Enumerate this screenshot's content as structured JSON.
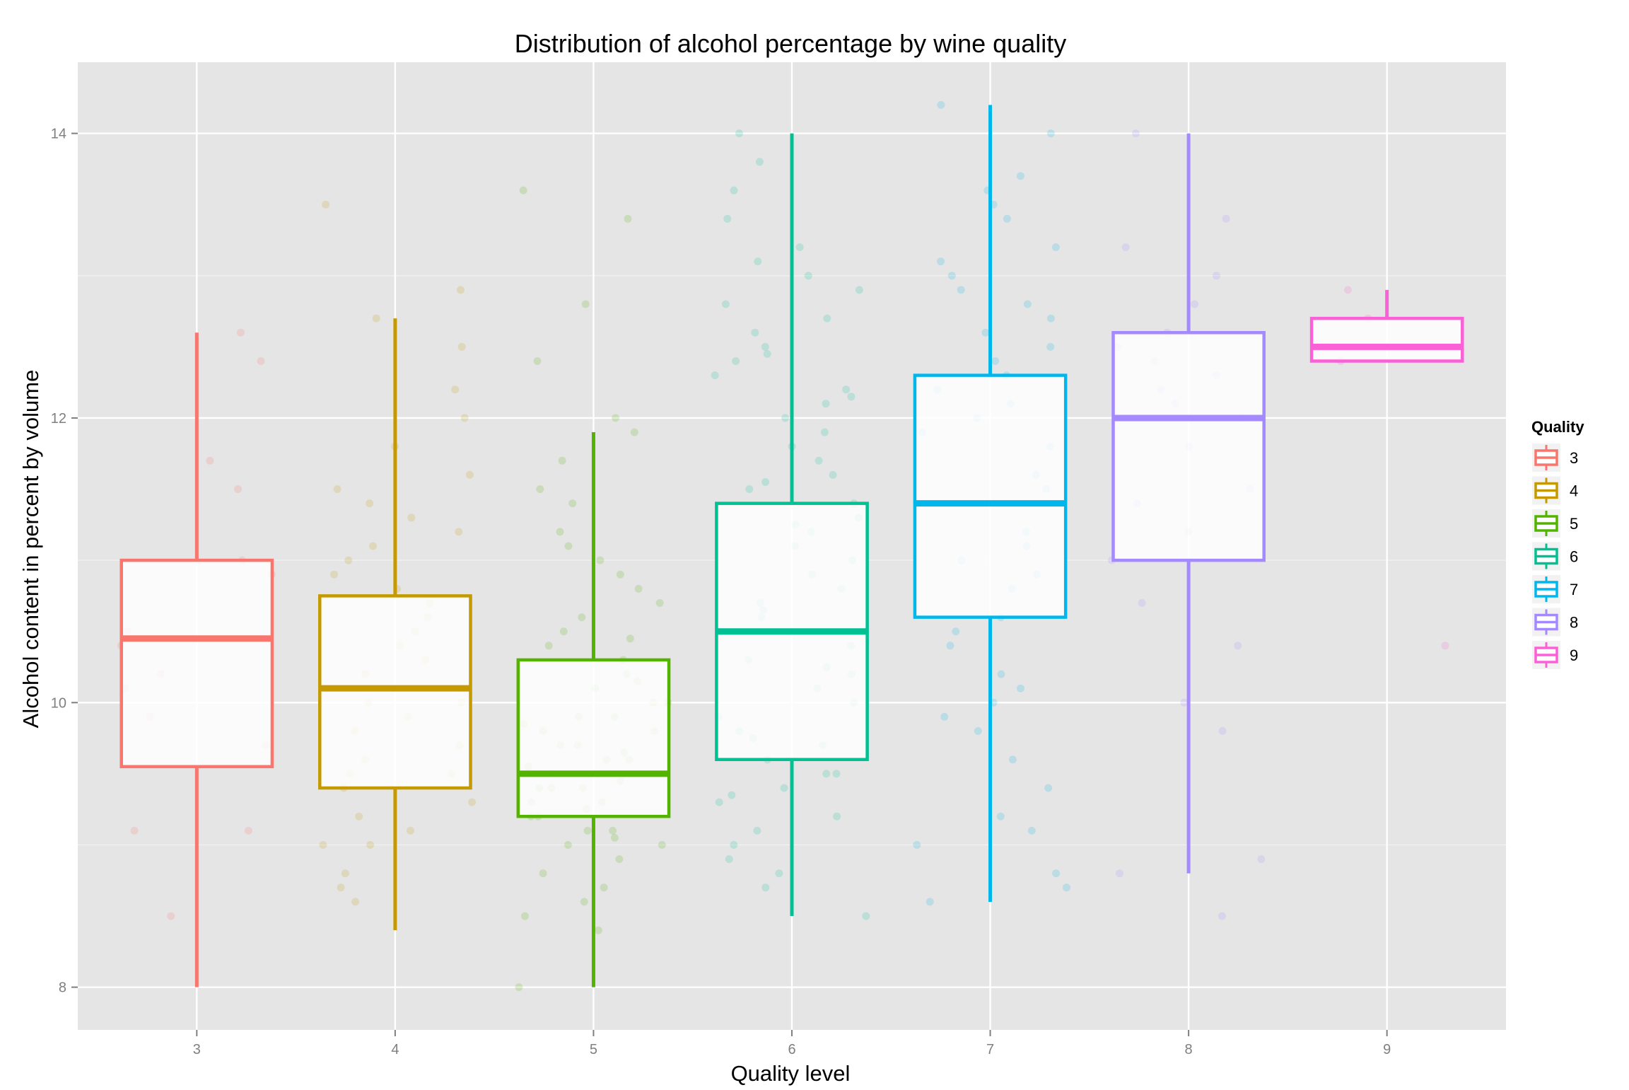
{
  "chart_data": {
    "type": "box",
    "title": "Distribution of alcohol percentage by wine quality",
    "xlabel": "Quality level",
    "ylabel": "Alcohol content in percent by volume",
    "categories": [
      "3",
      "4",
      "5",
      "6",
      "7",
      "8",
      "9"
    ],
    "ylim": [
      7.7,
      14.5
    ],
    "yticks": [
      8,
      10,
      12,
      14
    ],
    "grid": true,
    "legend": {
      "title": "Quality",
      "position": "right",
      "entries": [
        "3",
        "4",
        "5",
        "6",
        "7",
        "8",
        "9"
      ]
    },
    "colors": {
      "3": "#F8766D",
      "4": "#C49A00",
      "5": "#53B400",
      "6": "#00C094",
      "7": "#00B6EB",
      "8": "#A58AFF",
      "9": "#FB61D7"
    },
    "panel_background": "#E5E5E5",
    "boxes": [
      {
        "quality": "3",
        "whisker_low": 8.0,
        "q1": 9.55,
        "median": 10.45,
        "q3": 11.0,
        "whisker_high": 12.6
      },
      {
        "quality": "4",
        "whisker_low": 8.4,
        "q1": 9.4,
        "median": 10.1,
        "q3": 10.75,
        "whisker_high": 12.7
      },
      {
        "quality": "5",
        "whisker_low": 8.0,
        "q1": 9.2,
        "median": 9.5,
        "q3": 10.3,
        "whisker_high": 11.9
      },
      {
        "quality": "6",
        "whisker_low": 8.5,
        "q1": 9.6,
        "median": 10.5,
        "q3": 11.4,
        "whisker_high": 14.0
      },
      {
        "quality": "7",
        "whisker_low": 8.6,
        "q1": 10.6,
        "median": 11.4,
        "q3": 12.3,
        "whisker_high": 14.2
      },
      {
        "quality": "8",
        "whisker_low": 8.8,
        "q1": 11.0,
        "median": 12.0,
        "q3": 12.6,
        "whisker_high": 14.0
      },
      {
        "quality": "9",
        "whisker_low": 12.4,
        "q1": 12.4,
        "median": 12.5,
        "q3": 12.7,
        "whisker_high": 12.9
      }
    ],
    "jitter_points": {
      "3": [
        9.1,
        9.1,
        9.7,
        10.1,
        10.4,
        10.5,
        11.5,
        11.7,
        12.4,
        12.6,
        8.5,
        9.9,
        10.2,
        11.0,
        10.9
      ],
      "4": [
        8.7,
        9.0,
        9.0,
        9.2,
        9.4,
        9.5,
        9.5,
        9.7,
        9.8,
        10.0,
        10.1,
        10.2,
        10.5,
        10.8,
        11.0,
        11.2,
        11.4,
        11.6,
        12.0,
        12.5,
        13.5,
        12.9,
        12.2,
        11.1,
        10.9,
        10.3,
        9.9,
        8.6,
        8.8,
        9.3,
        9.6,
        10.4,
        10.6,
        11.3,
        11.8,
        12.7,
        9.1,
        10.0,
        10.7,
        11.5
      ],
      "5": [
        8.4,
        8.5,
        8.7,
        8.8,
        8.9,
        9.0,
        9.0,
        9.1,
        9.1,
        9.2,
        9.2,
        9.3,
        9.3,
        9.4,
        9.4,
        9.4,
        9.5,
        9.5,
        9.5,
        9.6,
        9.6,
        9.7,
        9.7,
        9.8,
        9.8,
        9.9,
        9.9,
        10.0,
        10.0,
        10.1,
        10.2,
        10.3,
        10.4,
        10.5,
        10.6,
        10.8,
        11.0,
        11.2,
        11.4,
        11.7,
        12.0,
        12.4,
        12.8,
        13.4,
        13.6,
        8.0,
        8.6,
        9.05,
        9.25,
        9.45,
        9.55,
        9.65,
        9.85,
        10.15,
        10.45,
        10.7,
        10.9,
        11.1,
        11.5,
        11.9
      ],
      "6": [
        8.5,
        8.7,
        8.8,
        8.9,
        9.0,
        9.1,
        9.2,
        9.3,
        9.4,
        9.5,
        9.5,
        9.6,
        9.7,
        9.8,
        9.9,
        10.0,
        10.1,
        10.2,
        10.3,
        10.4,
        10.5,
        10.6,
        10.7,
        10.8,
        10.9,
        11.0,
        11.1,
        11.2,
        11.3,
        11.4,
        11.5,
        11.6,
        11.7,
        11.8,
        11.9,
        12.0,
        12.1,
        12.2,
        12.3,
        12.4,
        12.5,
        12.6,
        12.7,
        12.8,
        12.9,
        13.0,
        13.2,
        13.4,
        13.6,
        13.8,
        14.0,
        9.35,
        9.75,
        10.25,
        10.65,
        11.25,
        11.55,
        12.15,
        12.45,
        13.1
      ],
      "7": [
        8.6,
        8.7,
        8.8,
        9.0,
        9.1,
        9.4,
        9.6,
        9.8,
        10.0,
        10.2,
        10.4,
        10.6,
        10.8,
        10.9,
        11.0,
        11.2,
        11.4,
        11.5,
        11.6,
        11.8,
        12.0,
        12.1,
        12.2,
        12.4,
        12.5,
        12.6,
        12.8,
        12.9,
        13.0,
        13.2,
        13.4,
        13.5,
        13.7,
        14.0,
        14.2,
        9.2,
        9.9,
        10.5,
        11.1,
        11.9,
        12.3,
        12.7,
        13.1,
        13.6,
        10.1
      ],
      "8": [
        8.8,
        8.9,
        9.8,
        10.4,
        10.7,
        11.0,
        11.2,
        11.5,
        11.8,
        12.0,
        12.2,
        12.4,
        12.5,
        12.6,
        12.8,
        13.0,
        13.4,
        14.0,
        8.5,
        10.0,
        11.4,
        12.1,
        12.3,
        13.2
      ],
      "9": [
        10.4,
        12.4,
        12.5,
        12.9,
        12.7
      ]
    }
  }
}
